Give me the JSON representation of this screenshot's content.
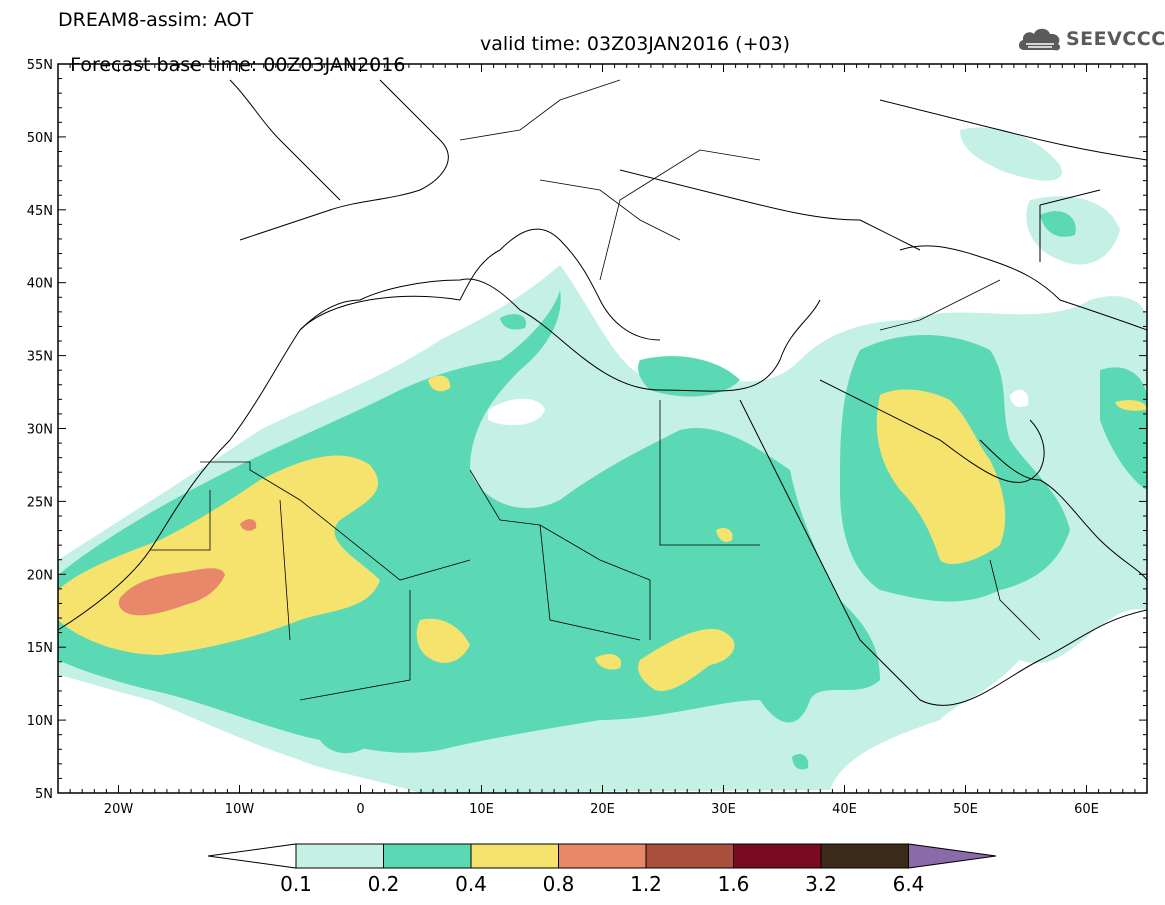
{
  "header": {
    "title_line1": "DREAM8-assim: AOT",
    "forecast_label": "Forecast base time: 00Z03JAN2016",
    "valid_label": "valid time: 03Z03JAN2016 (+03)",
    "logo_text": "SEEVCCC"
  },
  "map": {
    "lat_labels": [
      "55N",
      "50N",
      "45N",
      "40N",
      "35N",
      "30N",
      "25N",
      "20N",
      "15N",
      "10N",
      "5N"
    ],
    "lon_labels": [
      "20W",
      "10W",
      "0",
      "10E",
      "20E",
      "30E",
      "40E",
      "50E",
      "60E"
    ],
    "lat_range": [
      5,
      55
    ],
    "lon_range": [
      -25,
      65
    ]
  },
  "legend": {
    "colors": [
      "#ffffff",
      "#c5f0e6",
      "#5ad9b4",
      "#f5e36e",
      "#e8876a",
      "#a8503c",
      "#7a0a22",
      "#3c2a18",
      "#8a6aa8"
    ],
    "labels": [
      "0.1",
      "0.2",
      "0.4",
      "0.8",
      "1.2",
      "1.6",
      "3.2",
      "6.4"
    ]
  }
}
